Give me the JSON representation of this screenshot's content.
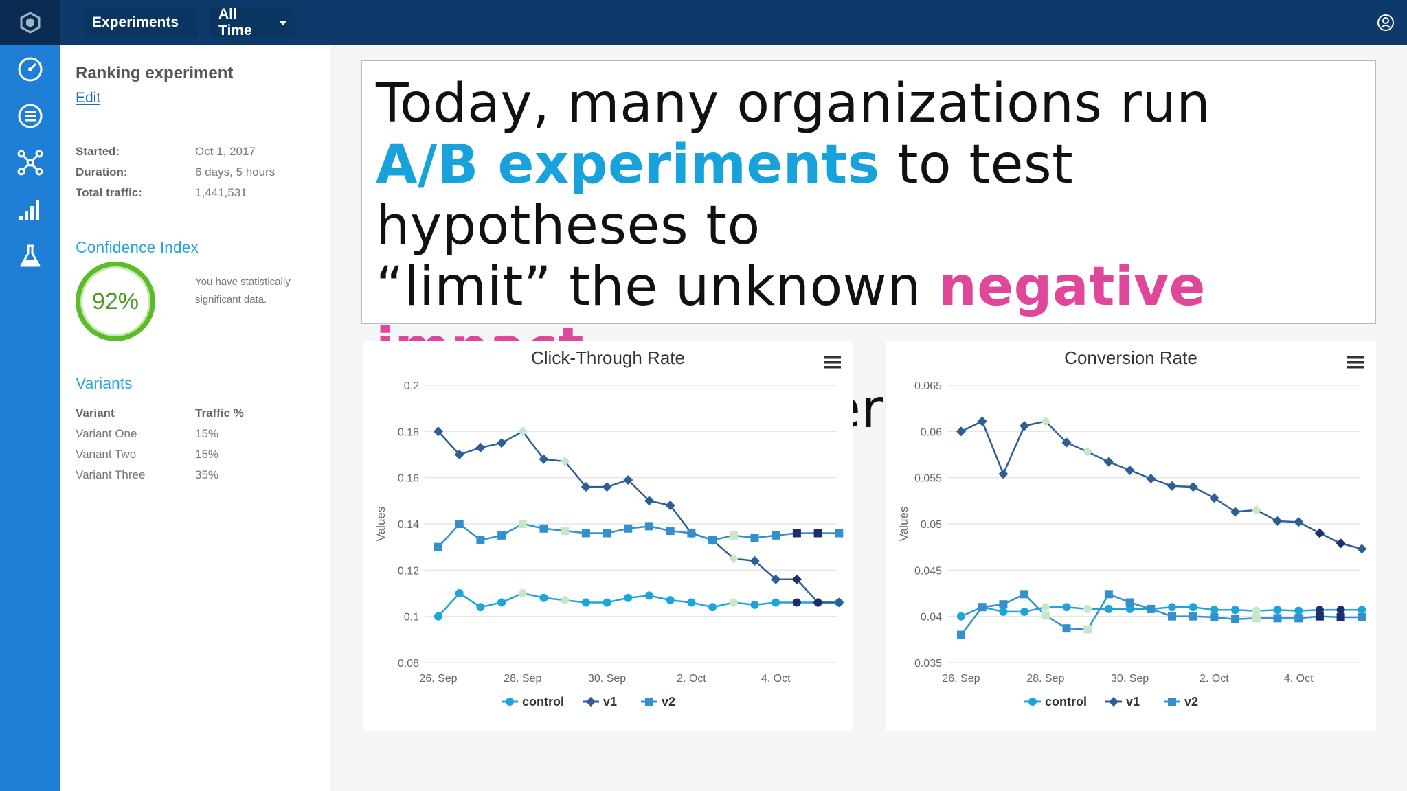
{
  "topbar": {
    "experiments_label": "Experiments",
    "time_label": "All Time"
  },
  "panel": {
    "title": "Ranking experiment",
    "edit_label": "Edit",
    "meta": [
      {
        "label": "Started:",
        "value": "Oct 1, 2017"
      },
      {
        "label": "Duration:",
        "value": "6 days, 5 hours"
      },
      {
        "label": "Total traffic:",
        "value": "1,441,531"
      }
    ],
    "confidence_title": "Confidence Index",
    "confidence_value": "92%",
    "confidence_note": "You have statistically significant data.",
    "variants_title": "Variants",
    "variants_header": {
      "variant": "Variant",
      "traffic": "Traffic %"
    },
    "variants": [
      {
        "name": "Variant One",
        "traffic": "15%"
      },
      {
        "name": "Variant Two",
        "traffic": "15%"
      },
      {
        "name": "Variant Three",
        "traffic": "35%"
      }
    ]
  },
  "quote": {
    "line1": "Today, many organizations run",
    "hl1": "A/B experiments",
    "line2": " to test hypotheses to",
    "line3a": "“limit” the unknown ",
    "hl2": "negative impact",
    "line4": "to a subset of users"
  },
  "colors": {
    "control": "#1ca5d8",
    "v1": "#2e5e98",
    "v2": "#3390cc",
    "pale": "#c8e6c8",
    "dark": "#1b2f6e"
  },
  "chart_data": [
    {
      "type": "line",
      "title": "Click-Through Rate",
      "ylabel": "Values",
      "ylim": [
        0.08,
        0.2
      ],
      "yticks": [
        "0.2",
        "0.18",
        "0.16",
        "0.14",
        "0.12",
        "0.1",
        "0.08"
      ],
      "xticks": [
        "26. Sep",
        "28. Sep",
        "30. Sep",
        "2. Oct",
        "4. Oct"
      ],
      "x": [
        "26. Sep",
        "",
        "27. Sep",
        "",
        "28. Sep",
        "",
        "29. Sep",
        "",
        "30. Sep",
        "",
        "1. Oct",
        "",
        "2. Oct",
        "",
        "3. Oct",
        "",
        "4. Oct",
        "",
        "5. Oct",
        ""
      ],
      "legend": [
        "control",
        "v1",
        "v2"
      ],
      "series": [
        {
          "name": "control",
          "values": [
            0.1,
            0.11,
            0.104,
            0.106,
            0.11,
            0.108,
            0.107,
            0.106,
            0.106,
            0.108,
            0.109,
            0.107,
            0.106,
            0.104,
            0.106,
            0.105,
            0.106,
            0.106,
            0.106,
            0.106
          ]
        },
        {
          "name": "v1",
          "values": [
            0.18,
            0.17,
            0.173,
            0.175,
            0.18,
            0.168,
            0.167,
            0.156,
            0.156,
            0.159,
            0.15,
            0.148,
            0.136,
            0.133,
            0.125,
            0.124,
            0.116,
            0.116,
            0.106,
            0.106
          ]
        },
        {
          "name": "v2",
          "values": [
            0.13,
            0.14,
            0.133,
            0.135,
            0.14,
            0.138,
            0.137,
            0.136,
            0.136,
            0.138,
            0.139,
            0.137,
            0.136,
            0.133,
            0.135,
            0.134,
            0.135,
            0.136,
            0.136,
            0.136
          ]
        }
      ]
    },
    {
      "type": "line",
      "title": "Conversion Rate",
      "ylabel": "Values",
      "ylim": [
        0.035,
        0.065
      ],
      "yticks": [
        "0.065",
        "0.06",
        "0.055",
        "0.05",
        "0.045",
        "0.04",
        "0.035"
      ],
      "xticks": [
        "26. Sep",
        "28. Sep",
        "30. Sep",
        "2. Oct",
        "4. Oct"
      ],
      "x": [
        "26. Sep",
        "",
        "27. Sep",
        "",
        "28. Sep",
        "",
        "29. Sep",
        "",
        "30. Sep",
        "",
        "1. Oct",
        "",
        "2. Oct",
        "",
        "3. Oct",
        "",
        "4. Oct",
        "",
        "5. Oct",
        ""
      ],
      "legend": [
        "control",
        "v1",
        "v2"
      ],
      "series": [
        {
          "name": "control",
          "values": [
            0.04,
            0.041,
            0.0405,
            0.0405,
            0.041,
            0.041,
            0.0408,
            0.0408,
            0.0408,
            0.0408,
            0.041,
            0.041,
            0.0407,
            0.0407,
            0.0406,
            0.0407,
            0.0406,
            0.0407,
            0.0407,
            0.0407
          ]
        },
        {
          "name": "v1",
          "values": [
            0.06,
            0.0611,
            0.0554,
            0.0606,
            0.0611,
            0.0588,
            0.0578,
            0.0567,
            0.0558,
            0.0549,
            0.0541,
            0.054,
            0.0528,
            0.0513,
            0.0515,
            0.0503,
            0.0502,
            0.049,
            0.0479,
            0.0473
          ]
        },
        {
          "name": "v2",
          "values": [
            0.038,
            0.041,
            0.0413,
            0.0424,
            0.0401,
            0.0387,
            0.0386,
            0.0424,
            0.0415,
            0.0408,
            0.04,
            0.04,
            0.0399,
            0.0397,
            0.0398,
            0.0398,
            0.0398,
            0.04,
            0.0399,
            0.0399
          ]
        }
      ]
    }
  ]
}
